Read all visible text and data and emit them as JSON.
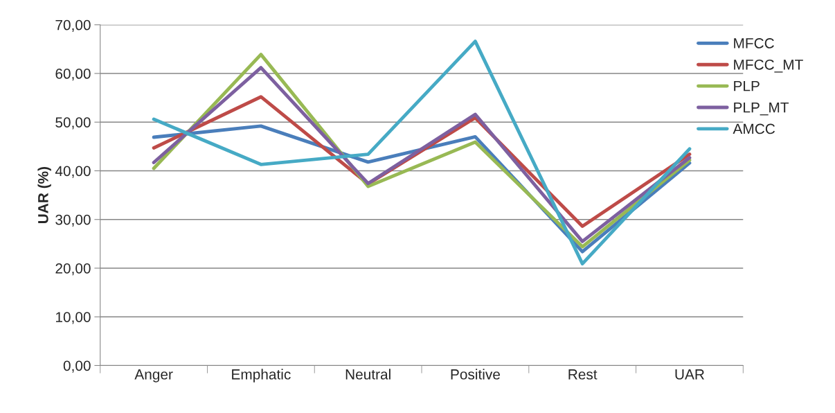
{
  "chart_data": {
    "type": "line",
    "ylabel": "UAR (%)",
    "categories": [
      "Anger",
      "Emphatic",
      "Neutral",
      "Positive",
      "Rest",
      "UAR"
    ],
    "series": [
      {
        "name": "MFCC",
        "color": "#4a7ebb",
        "values": [
          46.9,
          49.2,
          41.8,
          47.0,
          23.4,
          41.6
        ]
      },
      {
        "name": "MFCC_MT",
        "color": "#be4b48",
        "values": [
          44.7,
          55.2,
          37.3,
          50.9,
          28.6,
          43.4
        ]
      },
      {
        "name": "PLP",
        "color": "#98b954",
        "values": [
          40.5,
          63.9,
          36.8,
          45.9,
          24.4,
          42.2
        ]
      },
      {
        "name": "PLP_MT",
        "color": "#7d60a0",
        "values": [
          41.7,
          61.2,
          37.4,
          51.6,
          25.5,
          42.7
        ]
      },
      {
        "name": "AMCC",
        "color": "#46aac5",
        "values": [
          50.6,
          41.3,
          43.4,
          66.6,
          20.9,
          44.5
        ]
      }
    ],
    "ylim": [
      0,
      70
    ],
    "yticks": [
      {
        "value": 0,
        "label": "0,00"
      },
      {
        "value": 10,
        "label": "10,00"
      },
      {
        "value": 20,
        "label": "20,00"
      },
      {
        "value": 30,
        "label": "30,00"
      },
      {
        "value": 40,
        "label": "40,00"
      },
      {
        "value": 50,
        "label": "50,00"
      },
      {
        "value": 60,
        "label": "60,00"
      },
      {
        "value": 70,
        "label": "70,00"
      }
    ],
    "grid": "y",
    "legend": "top right",
    "marker": "none",
    "line_style": "solid"
  }
}
